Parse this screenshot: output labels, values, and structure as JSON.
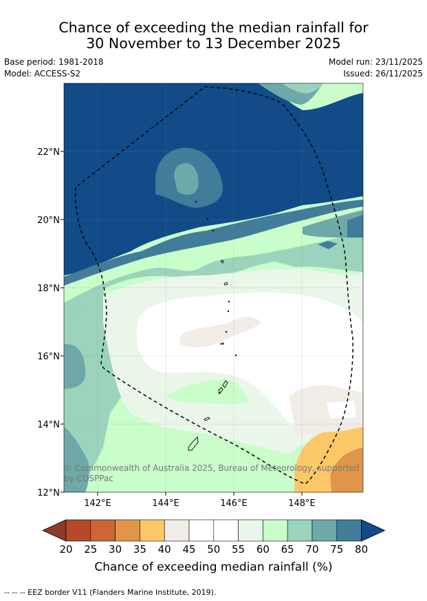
{
  "title_line1": "Chance of exceeding the median rainfall for",
  "title_line2": "30 November to 13 December 2025",
  "base_period": "Base period: 1981-2018",
  "model": "Model: ACCESS-S2",
  "model_run": "Model run: 23/11/2025",
  "issued": "Issued: 26/11/2025",
  "copyright_line1": "© Commonwealth of Australia 2025, Bureau of Meteorology, supported",
  "copyright_line2": "by COSPPac",
  "y_ticks": [
    "22°N",
    "20°N",
    "18°N",
    "16°N",
    "14°N",
    "12°N"
  ],
  "x_ticks": [
    "142°E",
    "144°E",
    "146°E",
    "148°E"
  ],
  "colorbar": {
    "ticks": [
      "20",
      "25",
      "30",
      "35",
      "40",
      "45",
      "50",
      "55",
      "60",
      "65",
      "70",
      "75",
      "80"
    ],
    "colors": [
      "#8c3a25",
      "#b5492a",
      "#cf6535",
      "#e0954a",
      "#fcc867",
      "#f1ece6",
      "#ffffff",
      "#ffffff",
      "#ebf6ea",
      "#c9fdca",
      "#9bd3bc",
      "#6da9a8",
      "#417c9b",
      "#114b88"
    ],
    "label": "Chance of exceeding median rainfall (%)"
  },
  "footer": "--  --  -- EEZ border V11 (Flanders Marine Institute, 2019)."
}
